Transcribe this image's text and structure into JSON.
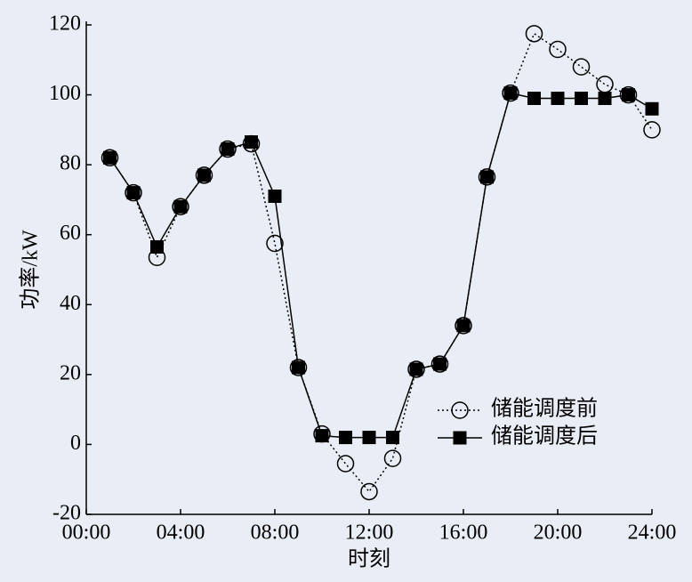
{
  "chart_data": {
    "type": "line",
    "x_label": "时刻",
    "y_label": "功率/kW",
    "x": [
      1,
      2,
      3,
      4,
      5,
      6,
      7,
      8,
      9,
      10,
      11,
      12,
      13,
      14,
      15,
      16,
      17,
      18,
      19,
      20,
      21,
      22,
      23,
      24
    ],
    "xlim": [
      0,
      24
    ],
    "xticks": [
      {
        "value": 0,
        "label": "00:00"
      },
      {
        "value": 4,
        "label": "04:00"
      },
      {
        "value": 8,
        "label": "08:00"
      },
      {
        "value": 12,
        "label": "12:00"
      },
      {
        "value": 16,
        "label": "16:00"
      },
      {
        "value": 20,
        "label": "20:00"
      },
      {
        "value": 24,
        "label": "24:00"
      }
    ],
    "ylim": [
      -20,
      120
    ],
    "yticks": [
      -20,
      0,
      20,
      40,
      60,
      80,
      100,
      120
    ],
    "legend_position": "right",
    "series": [
      {
        "name": "储能调度前",
        "color": "#000000",
        "marker": "circle",
        "line_style": "dotted",
        "values": [
          82,
          72,
          53.5,
          68,
          77,
          84.5,
          86,
          57.5,
          22,
          3,
          -5.5,
          -13.5,
          -4,
          21.5,
          23,
          34,
          76.5,
          100.5,
          117.5,
          113,
          108,
          103,
          100,
          90
        ]
      },
      {
        "name": "储能调度后",
        "color": "#000000",
        "marker": "square",
        "line_style": "solid",
        "values": [
          82,
          72,
          56.5,
          68,
          77,
          84.5,
          86.5,
          71,
          22,
          2.5,
          2,
          2,
          2,
          21.5,
          23,
          34,
          76.5,
          100.5,
          99,
          99,
          99,
          99,
          100,
          96
        ]
      }
    ]
  }
}
